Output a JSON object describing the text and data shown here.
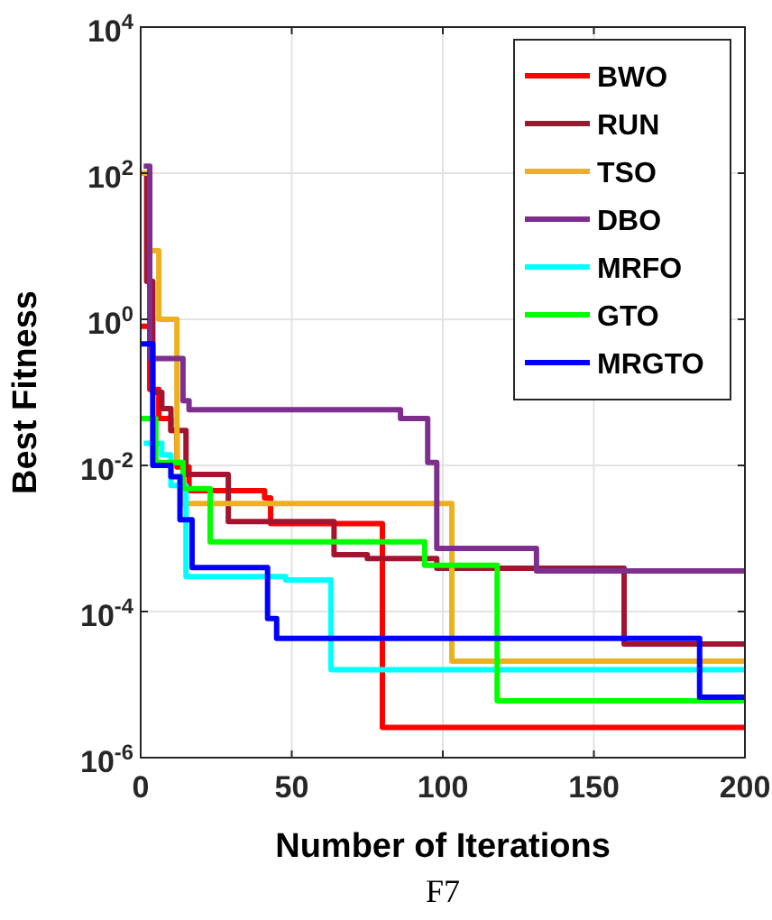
{
  "chart_data": {
    "type": "step",
    "xlabel": "Number of Iterations",
    "ylabel": "Best Fitness",
    "annotations": [
      "F7"
    ],
    "xlim": [
      0,
      200
    ],
    "xticks": [
      0,
      50,
      100,
      150,
      200
    ],
    "ylim": [
      1e-06,
      10000
    ],
    "log": true,
    "yticks": [
      {
        "value": 1e-06,
        "label": "10$^{-6}$"
      },
      {
        "value": 0.0001,
        "label": "10$^{-4}$"
      },
      {
        "value": 0.01,
        "label": "10$^{-2}$"
      },
      {
        "value": 1,
        "label": "10$^{0}$"
      },
      {
        "value": 100,
        "label": "10$^{2}$"
      },
      {
        "value": 10000,
        "label": "10$^{4}$"
      }
    ],
    "grid": true,
    "legend": "top right",
    "marker": "none",
    "line_style": "solid",
    "series": [
      {
        "name": "BWO",
        "color": "#ff0000",
        "x": [
          0,
          3,
          6,
          10,
          12,
          16,
          41,
          43,
          80,
          200
        ],
        "values": [
          0.8,
          0.11,
          0.044,
          0.03,
          0.0095,
          0.0045,
          0.0036,
          0.0016,
          2.6e-06,
          2.6e-06
        ]
      },
      {
        "name": "RUN",
        "color": "#a2142f",
        "x": [
          1,
          2,
          4,
          7,
          10,
          15,
          29,
          64,
          75,
          98,
          160,
          200
        ],
        "values": [
          100,
          3.3,
          0.1,
          0.06,
          0.03,
          0.0075,
          0.0017,
          0.0006,
          0.00053,
          0.00039,
          3.6e-05,
          3.6e-05
        ]
      },
      {
        "name": "TSO",
        "color": "#edb120",
        "x": [
          0,
          3,
          6,
          12,
          14,
          103,
          200
        ],
        "values": [
          100,
          8.7,
          1,
          0.011,
          0.003,
          2.1e-05,
          2.1e-05
        ]
      },
      {
        "name": "DBO",
        "color": "#7e2f8e",
        "x": [
          1,
          3,
          14,
          16,
          86,
          95,
          98,
          131,
          200
        ],
        "values": [
          125,
          0.29,
          0.077,
          0.058,
          0.044,
          0.011,
          0.00073,
          0.00036,
          0.00036
        ]
      },
      {
        "name": "MRFO",
        "color": "#00ffff",
        "x": [
          1,
          7,
          10,
          15,
          48,
          63,
          200
        ],
        "values": [
          0.02,
          0.014,
          0.0053,
          0.0003,
          0.00027,
          1.6e-05,
          1.6e-05
        ]
      },
      {
        "name": "GTO",
        "color": "#00ff00",
        "x": [
          0,
          5,
          14,
          23,
          94,
          118,
          200
        ],
        "values": [
          0.044,
          0.011,
          0.0048,
          0.0009,
          0.00043,
          6e-06,
          6e-06
        ]
      },
      {
        "name": "MRGTO",
        "color": "#0000ff",
        "x": [
          0,
          4,
          10,
          13,
          17,
          42,
          45,
          185,
          200
        ],
        "values": [
          0.46,
          0.01,
          0.007,
          0.0018,
          0.0004,
          8e-05,
          4.3e-05,
          6.7e-06,
          6.7e-06
        ]
      }
    ]
  }
}
